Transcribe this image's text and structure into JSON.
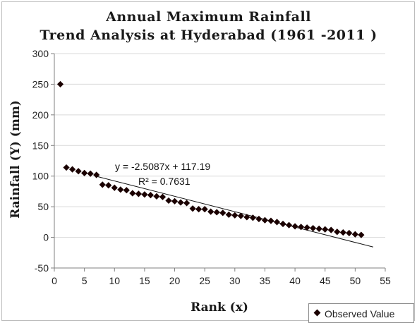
{
  "chart_data": {
    "type": "scatter",
    "title": "Annual Maximum Rainfall",
    "subtitle": "Trend Analysis at Hyderabad (1961 -2011 )",
    "xlabel": "Rank (x)",
    "ylabel": "Rainfall (Y) (mm)",
    "xlim": [
      0,
      55
    ],
    "ylim": [
      -50,
      300
    ],
    "x_ticks": [
      0,
      5,
      10,
      15,
      20,
      25,
      30,
      35,
      40,
      45,
      50,
      55
    ],
    "y_ticks": [
      -50,
      0,
      50,
      100,
      150,
      200,
      250,
      300
    ],
    "grid": "horizontal",
    "legend_position": "bottom-right",
    "marker_color": "#1a0000",
    "series": [
      {
        "name": "Observed Value",
        "x": [
          1,
          2,
          3,
          4,
          5,
          6,
          7,
          8,
          9,
          10,
          11,
          12,
          13,
          14,
          15,
          16,
          17,
          18,
          19,
          20,
          21,
          22,
          23,
          24,
          25,
          26,
          27,
          28,
          29,
          30,
          31,
          32,
          33,
          34,
          35,
          36,
          37,
          38,
          39,
          40,
          41,
          42,
          43,
          44,
          45,
          46,
          47,
          48,
          49,
          50,
          51
        ],
        "y": [
          250,
          114,
          111,
          108,
          105,
          104,
          102,
          86,
          85,
          81,
          78,
          77,
          72,
          71,
          70,
          69,
          67,
          66,
          60,
          59,
          57,
          56,
          47,
          46,
          46,
          42,
          41,
          40,
          37,
          36,
          35,
          33,
          32,
          30,
          28,
          27,
          25,
          22,
          20,
          18,
          17,
          16,
          15,
          14,
          13,
          12,
          9,
          8,
          7,
          5,
          4
        ]
      }
    ],
    "trendline": {
      "slope": -2.5087,
      "intercept": 117.19,
      "x_range": [
        7,
        53
      ],
      "equation_label": "y = -2.5087x + 117.19",
      "r2_label": "R² = 0.7631"
    }
  }
}
